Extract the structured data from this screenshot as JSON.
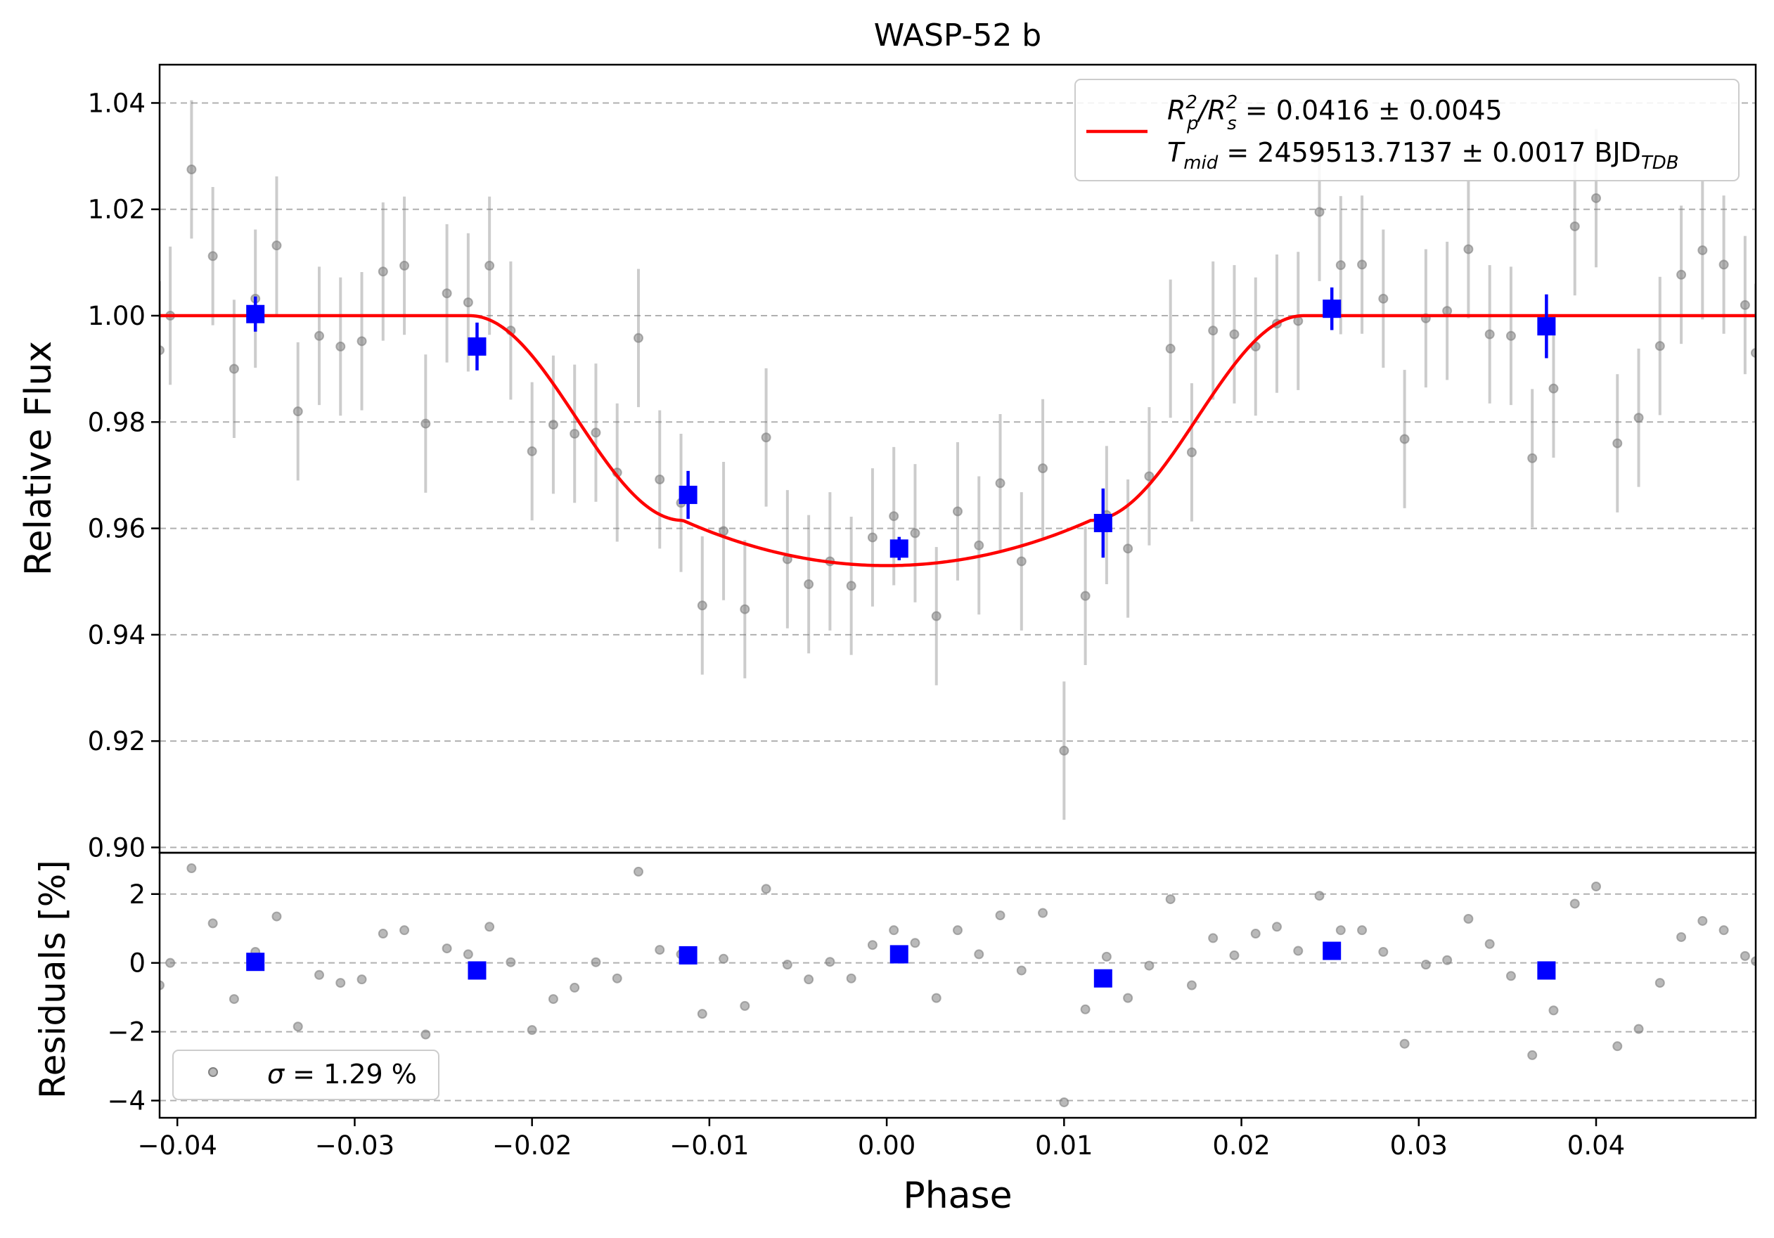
{
  "chart_data": {
    "type": "scatter",
    "title": "WASP-52 b",
    "xlabel": "Phase",
    "xlim": [
      -0.041,
      0.049
    ],
    "x_ticks": [
      -0.04,
      -0.03,
      -0.02,
      -0.01,
      0.0,
      0.01,
      0.02,
      0.03,
      0.04
    ],
    "x_tick_labels": [
      "−0.04",
      "−0.03",
      "−0.02",
      "−0.01",
      "0.00",
      "0.01",
      "0.02",
      "0.03",
      "0.04"
    ],
    "grid": true,
    "lightcurve": {
      "ylabel": "Relative Flux",
      "ylim": [
        0.899,
        1.0472
      ],
      "y_ticks": [
        0.9,
        0.92,
        0.94,
        0.96,
        0.98,
        1.0,
        1.02,
        1.04
      ],
      "y_tick_labels": [
        "0.90",
        "0.92",
        "0.94",
        "0.96",
        "0.98",
        "1.00",
        "1.02",
        "1.04"
      ],
      "legend": {
        "position": "upper right",
        "line1": "Rₚ²/Rₛ² = 0.0416 ± 0.0045",
        "line2": "Tₘᵢd = 2459513.7137 ± 0.0017 BJDᵀᴰᴮ",
        "line1_lhs_main": "R",
        "line1_lhs_sub": "p",
        "line1_lhs_sup": "2",
        "line1_lhs_div": "/R",
        "line1_lhs_sub2": "s",
        "line1_lhs_sup2": "2",
        "line1_rhs": " = 0.0416 ± 0.0045",
        "line2_lhs_main": "T",
        "line2_lhs_sub": "mid",
        "line2_rhs": " = 2459513.7137 ± 0.0017 BJD",
        "line2_rhs_sub": "TDB"
      },
      "model": {
        "name": "transit model",
        "color": "#ff0000",
        "baseline": 1.0,
        "depth_min": 0.953,
        "ingress_start": -0.0235,
        "ingress_end": -0.0115,
        "egress_start": 0.0115,
        "egress_end": 0.0235
      },
      "raw_points": {
        "color": "#808080",
        "x": [
          -0.041,
          -0.0404,
          -0.0392,
          -0.038,
          -0.0368,
          -0.0356,
          -0.0344,
          -0.0332,
          -0.032,
          -0.0308,
          -0.0296,
          -0.0284,
          -0.0272,
          -0.026,
          -0.0248,
          -0.0236,
          -0.0224,
          -0.0212,
          -0.02,
          -0.0188,
          -0.0176,
          -0.0164,
          -0.0152,
          -0.014,
          -0.0128,
          -0.0116,
          -0.0104,
          -0.0092,
          -0.008,
          -0.0068,
          -0.0056,
          -0.0044,
          -0.0032,
          -0.002,
          -0.0008,
          0.0004,
          0.0016,
          0.0028,
          0.004,
          0.0052,
          0.0064,
          0.0076,
          0.0088,
          0.01,
          0.0112,
          0.0124,
          0.0136,
          0.0148,
          0.016,
          0.0172,
          0.0184,
          0.0196,
          0.0208,
          0.022,
          0.0232,
          0.0244,
          0.0256,
          0.0268,
          0.028,
          0.0292,
          0.0304,
          0.0316,
          0.0328,
          0.034,
          0.0352,
          0.0364,
          0.0376,
          0.0388,
          0.04,
          0.0412,
          0.0424,
          0.0436,
          0.0448,
          0.046,
          0.0472,
          0.0484,
          0.049
        ],
        "y": [
          0.9935,
          1.0,
          1.0275,
          1.0112,
          0.99,
          1.0032,
          1.0132,
          0.982,
          0.9962,
          0.9942,
          0.9952,
          1.0083,
          1.0094,
          0.9797,
          1.0042,
          1.0025,
          1.0094,
          0.9972,
          0.9745,
          0.9795,
          0.9778,
          0.978,
          0.9705,
          0.9958,
          0.9692,
          0.9648,
          0.9455,
          0.9595,
          0.9448,
          0.9771,
          0.9542,
          0.9495,
          0.9538,
          0.9492,
          0.9583,
          0.9623,
          0.9591,
          0.9435,
          0.9632,
          0.9568,
          0.9685,
          0.9538,
          0.9713,
          0.9182,
          0.9473,
          0.9625,
          0.9562,
          0.9698,
          0.9938,
          0.9743,
          0.9972,
          0.9965,
          0.9942,
          0.9985,
          0.999,
          1.0195,
          1.0095,
          1.0096,
          1.0032,
          0.9768,
          0.9995,
          1.0009,
          1.0125,
          0.9965,
          0.9962,
          0.9732,
          0.9863,
          1.0168,
          1.0221,
          0.976,
          0.9808,
          0.9943,
          1.0077,
          1.0123,
          1.0096,
          1.002,
          0.993
        ],
        "yerr": 0.013
      },
      "binned_points": {
        "color": "#0000ff",
        "x": [
          -0.0356,
          -0.0231,
          -0.0112,
          0.0007,
          0.0122,
          0.0251,
          0.0372
        ],
        "y": [
          1.0003,
          0.9942,
          0.9663,
          0.9562,
          0.961,
          1.0013,
          0.998
        ],
        "yerr": [
          0.0033,
          0.0045,
          0.0045,
          0.0022,
          0.0065,
          0.004,
          0.006
        ]
      }
    },
    "residuals": {
      "ylabel": "Residuals [%]",
      "ylim": [
        -4.5,
        3.2
      ],
      "y_ticks": [
        -4,
        -2,
        0,
        2
      ],
      "y_tick_labels": [
        "−4",
        "−2",
        "0",
        "2"
      ],
      "legend": {
        "position": "lower left",
        "label_sym": "σ",
        "label_rest": " = 1.29 %"
      },
      "raw_points": {
        "color": "#808080",
        "x": [
          -0.041,
          -0.0404,
          -0.0392,
          -0.038,
          -0.0368,
          -0.0356,
          -0.0344,
          -0.0332,
          -0.032,
          -0.0308,
          -0.0296,
          -0.0284,
          -0.0272,
          -0.026,
          -0.0248,
          -0.0236,
          -0.0224,
          -0.0212,
          -0.02,
          -0.0188,
          -0.0176,
          -0.0164,
          -0.0152,
          -0.014,
          -0.0128,
          -0.0116,
          -0.0104,
          -0.0092,
          -0.008,
          -0.0068,
          -0.0056,
          -0.0044,
          -0.0032,
          -0.002,
          -0.0008,
          0.0004,
          0.0016,
          0.0028,
          0.004,
          0.0052,
          0.0064,
          0.0076,
          0.0088,
          0.01,
          0.0112,
          0.0124,
          0.0136,
          0.0148,
          0.016,
          0.0172,
          0.0184,
          0.0196,
          0.0208,
          0.022,
          0.0232,
          0.0244,
          0.0256,
          0.0268,
          0.028,
          0.0292,
          0.0304,
          0.0316,
          0.0328,
          0.034,
          0.0352,
          0.0364,
          0.0376,
          0.0388,
          0.04,
          0.0412,
          0.0424,
          0.0436,
          0.0448,
          0.046,
          0.0472,
          0.0484,
          0.049
        ],
        "y": [
          -0.65,
          0.0,
          2.75,
          1.15,
          -1.05,
          0.32,
          1.35,
          -1.85,
          -0.35,
          -0.58,
          -0.48,
          0.85,
          0.95,
          -2.08,
          0.42,
          0.25,
          1.05,
          0.02,
          -1.95,
          -1.05,
          -0.72,
          0.02,
          -0.45,
          2.65,
          0.38,
          0.25,
          -1.48,
          0.12,
          -1.25,
          2.15,
          -0.05,
          -0.48,
          0.03,
          -0.45,
          0.52,
          0.95,
          0.58,
          -1.02,
          0.95,
          0.25,
          1.38,
          -0.22,
          1.45,
          -4.05,
          -1.35,
          0.18,
          -1.02,
          -0.08,
          1.85,
          -0.65,
          0.72,
          0.22,
          0.85,
          1.05,
          0.35,
          1.95,
          0.95,
          0.95,
          0.32,
          -2.35,
          -0.05,
          0.08,
          1.28,
          0.55,
          -0.38,
          -2.68,
          -1.38,
          1.72,
          2.22,
          -2.42,
          -1.92,
          -0.58,
          0.75,
          1.22,
          0.95,
          0.2,
          0.05
        ]
      },
      "binned_points": {
        "color": "#0000ff",
        "x": [
          -0.0356,
          -0.0231,
          -0.0112,
          0.0007,
          0.0122,
          0.0251,
          0.0372
        ],
        "y": [
          0.03,
          -0.22,
          0.22,
          0.25,
          -0.45,
          0.35,
          -0.22
        ]
      }
    }
  }
}
